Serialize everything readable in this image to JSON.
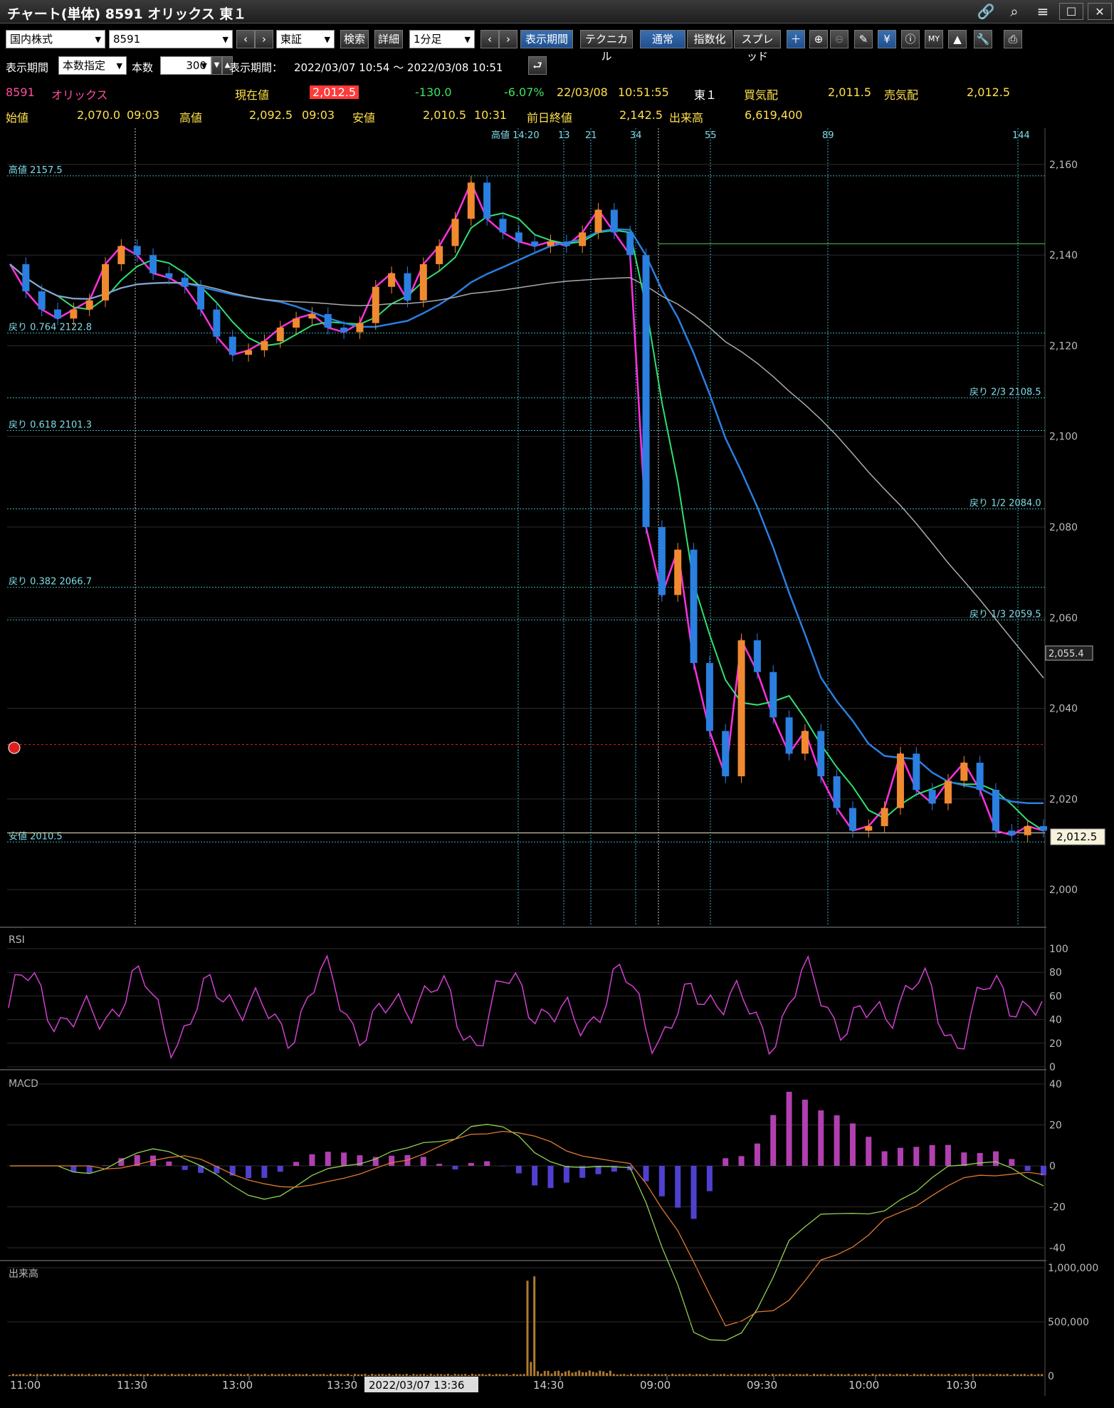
{
  "window": {
    "title": "チャート(単体) 8591 オリックス 東１"
  },
  "toolbar": {
    "market": "国内株式",
    "code": "8591",
    "exchange": "東証",
    "search": "検索",
    "detail": "詳細",
    "interval": "1分足",
    "period_btn": "表示期間",
    "technical": "テクニカル",
    "normal": "通常",
    "index": "指数化",
    "spread": "スプレッド"
  },
  "range": {
    "label": "表示期間",
    "mode": "本数指定",
    "count_label": "本数",
    "count": "300",
    "period_label": "表示期間：",
    "period": "2022/03/07 10:54 ～ 2022/03/08 10:51"
  },
  "quote": {
    "code": "8591",
    "name": "オリックス",
    "current_label": "現在値",
    "current": "2,012.5",
    "change": "-130.0",
    "change_pct": "-6.07%",
    "datetime": "22/03/08",
    "time": "10:51:55",
    "market": "東１",
    "bid_label": "買気配",
    "bid": "2,011.5",
    "ask_label": "売気配",
    "ask": "2,012.5",
    "open_label": "始値",
    "open": "2,070.0",
    "open_time": "09:03",
    "high_label": "高値",
    "high": "2,092.5",
    "high_time": "09:03",
    "low_label": "安値",
    "low": "2,010.5",
    "low_time": "10:31",
    "prev_label": "前日終値",
    "prev": "2,142.5",
    "volume_label": "出来高",
    "volume": "6,619,400"
  },
  "chart_data": {
    "type": "candlestick",
    "price_axis": {
      "ticks": [
        "2,160",
        "2,140",
        "2,120",
        "2,100",
        "2,080",
        "2,060",
        "2,040",
        "2,020",
        "2,000"
      ],
      "range": [
        1992,
        2168
      ]
    },
    "price_tags": {
      "current": "2,012.5",
      "ma_tag": "2,055.4"
    },
    "fib_lines": [
      {
        "label": "高値 2157.5",
        "value": 2157.5
      },
      {
        "label": "戻り 0.764 2122.8",
        "value": 2122.8
      },
      {
        "label": "戻り 2/3 2108.5",
        "value": 2108.5
      },
      {
        "label": "戻り 0.618 2101.3",
        "value": 2101.3
      },
      {
        "label": "戻り 1/2 2084.0",
        "value": 2084.0
      },
      {
        "label": "戻り 0.382 2066.7",
        "value": 2066.7
      },
      {
        "label": "戻り 1/3 2059.5",
        "value": 2059.5
      },
      {
        "label": "安値 2010.5",
        "value": 2010.5
      }
    ],
    "fib_time_labels": [
      "高値 14:20",
      "13",
      "21",
      "34",
      "55",
      "89",
      "144"
    ],
    "x_labels": [
      "11:00",
      "11:30",
      "13:00",
      "13:30",
      "14:30",
      "09:00",
      "09:30",
      "10:00",
      "10:30"
    ],
    "cursor_label": "2022/03/07 13:36",
    "close_path": [
      2138,
      2132,
      2128,
      2126,
      2128,
      2130,
      2138,
      2142,
      2140,
      2136,
      2135,
      2133,
      2128,
      2122,
      2118,
      2119,
      2121,
      2124,
      2126,
      2127,
      2124,
      2123,
      2125,
      2133,
      2136,
      2130,
      2138,
      2142,
      2148,
      2156,
      2148,
      2145,
      2143,
      2142,
      2143,
      2142,
      2145,
      2150,
      2145,
      2140,
      2080,
      2065,
      2075,
      2050,
      2035,
      2025,
      2055,
      2048,
      2038,
      2030,
      2035,
      2025,
      2018,
      2013,
      2014,
      2018,
      2030,
      2022,
      2019,
      2024,
      2028,
      2022,
      2013,
      2012,
      2014,
      2013
    ],
    "rsi": {
      "label": "RSI",
      "ticks": [
        "100",
        "80",
        "60",
        "40",
        "20",
        "0"
      ]
    },
    "macd": {
      "label": "MACD",
      "ticks": [
        "40",
        "20",
        "0",
        "-20",
        "-40"
      ]
    },
    "volume": {
      "label": "出来高",
      "ticks": [
        "1,000,000",
        "500,000",
        "0"
      ]
    }
  }
}
